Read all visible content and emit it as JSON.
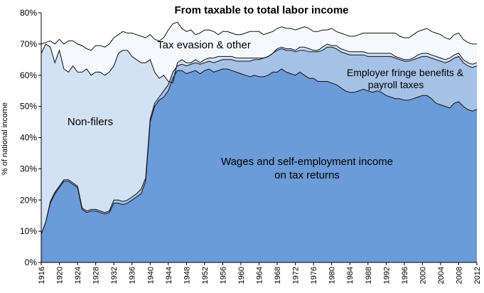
{
  "chart_data": {
    "type": "area",
    "title": "From taxable to total labor income",
    "xlabel": "",
    "ylabel": "% of national income",
    "xlim": [
      1916,
      2012
    ],
    "ylim": [
      0,
      80
    ],
    "y_ticks": [
      "0%",
      "10%",
      "20%",
      "30%",
      "40%",
      "50%",
      "60%",
      "70%",
      "80%"
    ],
    "x_ticks": [
      "1916",
      "1920",
      "1924",
      "1928",
      "1932",
      "1936",
      "1940",
      "1944",
      "1948",
      "1952",
      "1956",
      "1960",
      "1964",
      "1968",
      "1972",
      "1976",
      "1980",
      "1984",
      "1988",
      "1992",
      "1996",
      "2000",
      "2004",
      "2008",
      "2012"
    ],
    "grid": false,
    "annotations": [
      "Tax evasion & other",
      "Employer fringe benefits &",
      "payroll taxes",
      "Non-filers",
      "Wages and self-employment income",
      "on tax returns"
    ],
    "x": [
      1916,
      1917,
      1918,
      1919,
      1920,
      1921,
      1922,
      1923,
      1924,
      1925,
      1926,
      1927,
      1928,
      1929,
      1930,
      1931,
      1932,
      1933,
      1934,
      1935,
      1936,
      1937,
      1938,
      1939,
      1940,
      1941,
      1942,
      1943,
      1944,
      1945,
      1946,
      1947,
      1948,
      1949,
      1950,
      1951,
      1952,
      1953,
      1954,
      1955,
      1956,
      1957,
      1958,
      1959,
      1960,
      1961,
      1962,
      1963,
      1964,
      1965,
      1966,
      1967,
      1968,
      1969,
      1970,
      1971,
      1972,
      1973,
      1974,
      1975,
      1976,
      1977,
      1978,
      1979,
      1980,
      1981,
      1982,
      1983,
      1984,
      1985,
      1986,
      1987,
      1988,
      1989,
      1990,
      1991,
      1992,
      1993,
      1994,
      1995,
      1996,
      1997,
      1998,
      1999,
      2000,
      2001,
      2002,
      2003,
      2004,
      2005,
      2006,
      2007,
      2008,
      2009,
      2010,
      2011,
      2012
    ],
    "series": [
      {
        "color": "#6b9bd8",
        "values": [
          9,
          13,
          19,
          22,
          24,
          26,
          26,
          25,
          24,
          17,
          16,
          16.5,
          16.5,
          16,
          15.5,
          16,
          19,
          19,
          18.5,
          19,
          20,
          21,
          22,
          26,
          45,
          50,
          52,
          53,
          55,
          59,
          61.5,
          61.5,
          60.5,
          61,
          61.5,
          60.5,
          61.5,
          62,
          61,
          61.5,
          62,
          62,
          61.5,
          61,
          60.5,
          60,
          59.5,
          60,
          59.5,
          59.5,
          60,
          61,
          61,
          62,
          61,
          60.5,
          60,
          61,
          60,
          59,
          59,
          58,
          58,
          58,
          57.5,
          57,
          56,
          55,
          54.5,
          54.5,
          55,
          55.5,
          55,
          54.5,
          55,
          54.5,
          53.5,
          53,
          52.5,
          52.5,
          52,
          52,
          52.5,
          53,
          53.5,
          53.5,
          52.5,
          51,
          50.5,
          50,
          49.5,
          51,
          51.5,
          50,
          49,
          48.5,
          49
        ]
      },
      {
        "color": "#a5c1e6",
        "values": [
          9,
          13,
          19.5,
          22.5,
          24.5,
          26.5,
          26.5,
          25.5,
          24.5,
          17.5,
          16.5,
          17,
          17,
          16.5,
          16,
          16.5,
          20,
          20,
          19.5,
          20,
          21,
          22,
          23.5,
          27,
          46,
          51,
          53,
          55,
          57,
          61,
          63,
          63.5,
          63,
          63.5,
          64,
          63.5,
          64,
          64.5,
          64,
          64.5,
          65,
          65,
          65,
          64.5,
          64.5,
          64.5,
          64.5,
          65,
          65,
          65.5,
          66,
          67,
          68,
          68.5,
          68,
          68,
          67.5,
          68,
          68,
          67.5,
          67.5,
          67.5,
          68,
          69,
          69,
          68.5,
          67.5,
          67,
          66.5,
          66.5,
          66.5,
          66.5,
          66,
          66,
          66,
          66,
          66,
          66,
          65.5,
          65,
          64.5,
          64.5,
          65,
          65.5,
          66,
          66,
          65.5,
          65,
          64.5,
          64,
          64.5,
          65.5,
          66,
          64,
          63,
          62.5,
          63
        ]
      },
      {
        "color": "#d3e1f4",
        "values": [
          67,
          70,
          69,
          64,
          68,
          62,
          61,
          63,
          61,
          61,
          62,
          60,
          61,
          61,
          60,
          61,
          63,
          67,
          68,
          68,
          66,
          65,
          64,
          64,
          65,
          61,
          59,
          60,
          58,
          57.5,
          64,
          65,
          64,
          64,
          65,
          64,
          65,
          65.5,
          65.5,
          66,
          66,
          66,
          66,
          65.5,
          65.5,
          65.5,
          65.5,
          65.5,
          65.5,
          65.5,
          66,
          67,
          68.5,
          69,
          68.5,
          68.5,
          68,
          69,
          69,
          68.5,
          68,
          68,
          69,
          70,
          69.5,
          69.5,
          68.5,
          68,
          67.5,
          67.5,
          67.5,
          67.5,
          67,
          67,
          67,
          67,
          67,
          67,
          66,
          65.5,
          65,
          65,
          65.5,
          66.5,
          67,
          67,
          66.5,
          66,
          65.5,
          65,
          65.5,
          66.5,
          67,
          65,
          64,
          63.5,
          64
        ]
      },
      {
        "color": "#f5f8fc",
        "values": [
          70,
          70.5,
          71,
          70,
          71.5,
          70,
          71,
          71,
          70,
          69.5,
          68.5,
          68,
          69.5,
          69.5,
          69,
          70,
          72,
          73,
          74,
          73.5,
          73.5,
          73,
          72.5,
          72,
          73,
          71.5,
          71,
          72,
          74.5,
          76.5,
          77,
          75,
          74,
          74.5,
          73,
          73.5,
          74.5,
          74.5,
          74,
          73,
          74,
          74,
          73.5,
          73,
          73,
          73.5,
          74,
          74,
          74,
          73,
          73.5,
          74,
          75,
          75.5,
          75,
          75,
          74.5,
          75,
          75.5,
          75,
          74,
          74,
          74.5,
          74.5,
          75,
          74,
          73.5,
          73,
          72.5,
          72.5,
          73,
          73.5,
          73.5,
          73.5,
          73.5,
          73.5,
          73.5,
          73.5,
          73.5,
          72.5,
          72,
          72,
          73,
          74,
          74.5,
          75,
          74,
          73.5,
          73,
          72,
          71.5,
          73,
          73.5,
          71.5,
          70.5,
          70,
          70
        ]
      }
    ]
  }
}
